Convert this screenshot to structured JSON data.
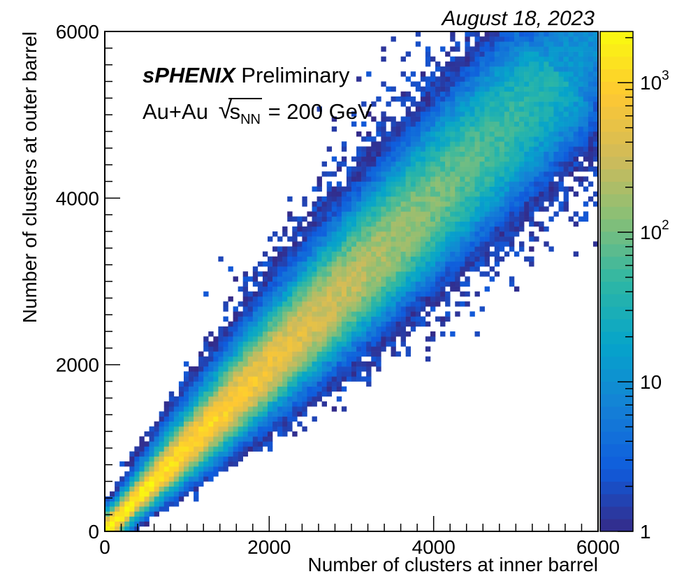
{
  "chart_data": {
    "type": "heatmap",
    "date_label": "August 18, 2023",
    "annotation": {
      "experiment": "sPHENIX",
      "status": "Preliminary",
      "collision_system": "Au+Au",
      "energy_symbol": "s",
      "energy_subscript": "NN",
      "energy_value": "= 200 GeV"
    },
    "xlabel": "Number of clusters at inner barrel",
    "ylabel": "Number of clusters at outer barrel",
    "xlim": [
      0,
      6000
    ],
    "ylim": [
      0,
      6000
    ],
    "x_ticks": [
      "0",
      "2000",
      "4000",
      "6000"
    ],
    "y_ticks": [
      "0",
      "2000",
      "4000",
      "6000"
    ],
    "colorbar": {
      "scale": "log",
      "range": [
        1,
        2200
      ],
      "tick_labels": [
        "1",
        "10",
        "10^2",
        "10^3"
      ],
      "tick_values": [
        1,
        10,
        100,
        1000
      ],
      "palette": [
        "#352a87",
        "#0f5cdd",
        "#1481d6",
        "#06a4ca",
        "#2eb7a4",
        "#87bf77",
        "#d1bb59",
        "#fec832",
        "#f9fb0e"
      ]
    },
    "correlation": {
      "slope": 1.0,
      "intercept": 0,
      "x_extent": [
        0,
        6000
      ],
      "density_peak_at_x": 100,
      "core_width_fraction": 0.08,
      "spread_fraction": 0.15
    },
    "grid": false
  }
}
